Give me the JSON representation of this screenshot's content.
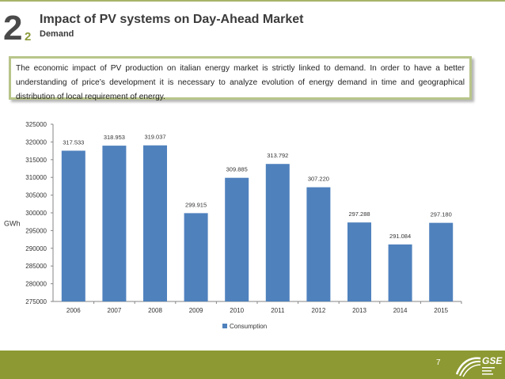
{
  "header": {
    "section_number": "2",
    "sub_number": "2",
    "title": "Impact of PV systems on Day-Ahead Market",
    "subtitle": "Demand"
  },
  "intro_text": "The economic impact of PV production on italian energy market is strictly linked to demand. In order to have a better understanding of price’s development it is necessary to analyze evolution of energy demand in time and geographical distribution of local requirement of energy.",
  "footer": {
    "page_number": "7",
    "logo_text": "GSE"
  },
  "colors": {
    "bar": "#4f81bd",
    "footer": "#8d9932",
    "accent": "#b8c58a"
  },
  "chart_data": {
    "type": "bar",
    "categories": [
      "2006",
      "2007",
      "2008",
      "2009",
      "2010",
      "2011",
      "2012",
      "2013",
      "2014",
      "2015"
    ],
    "series": [
      {
        "name": "Consumption",
        "values": [
          317533,
          318953,
          319037,
          299915,
          309885,
          313792,
          307220,
          297288,
          291084,
          297180
        ]
      }
    ],
    "data_labels": [
      "317.533",
      "318.953",
      "319.037",
      "299.915",
      "309.885",
      "313.792",
      "307.220",
      "297.288",
      "291.084",
      "297.180"
    ],
    "ylabel": "GWh",
    "xlabel": "",
    "ylim": [
      275000,
      325000
    ],
    "yticks": [
      "275000",
      "280000",
      "285000",
      "290000",
      "295000",
      "300000",
      "305000",
      "310000",
      "315000",
      "320000",
      "325000"
    ],
    "legend_position": "bottom",
    "grid": false
  }
}
